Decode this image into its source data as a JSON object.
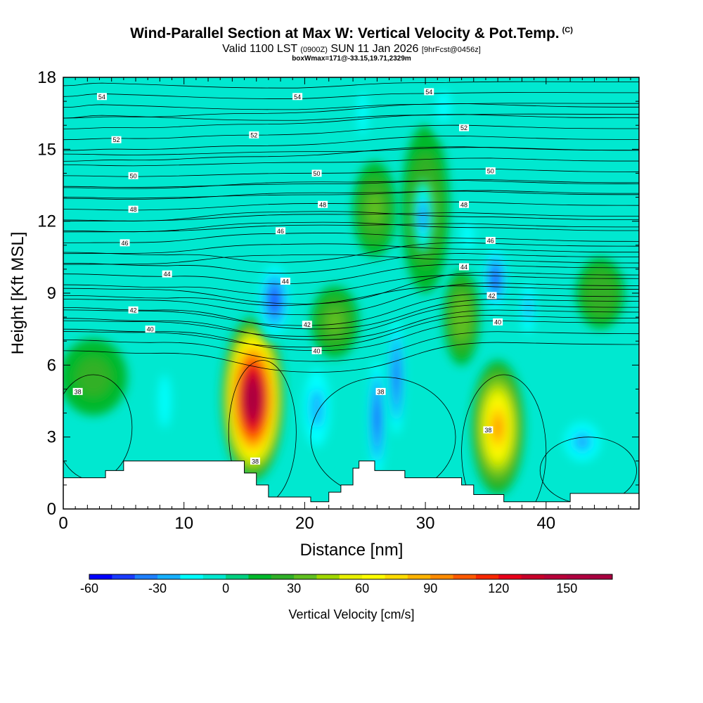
{
  "header": {
    "title": "Wind-Parallel Section at Max W: Vertical Velocity & Pot.Temp.",
    "copyright": "(C)",
    "valid_label": "Valid 1100 LST",
    "valid_utc": "(0900Z)",
    "valid_date": "SUN 11 Jan 2026",
    "fcst": "[9hrFcst@0456z]",
    "boxwmax": "boxWmax=171@-33.15,19.71,2329m"
  },
  "chart_data": {
    "type": "heatmap",
    "xlabel": "Distance [nm]",
    "ylabel": "Height [Kft MSL]",
    "xlim": [
      0,
      47.7
    ],
    "ylim": [
      0,
      18
    ],
    "x_ticks": [
      0,
      10,
      20,
      30,
      40
    ],
    "y_ticks": [
      0,
      3,
      6,
      9,
      12,
      15,
      18
    ],
    "colorbar": {
      "label": "Vertical Velocity [cm/s]",
      "vmin": -60,
      "vmax": 170,
      "step": 10,
      "tick_values": [
        -60,
        -30,
        0,
        30,
        60,
        90,
        120,
        150
      ],
      "colors": [
        "#0000ff",
        "#1a3cff",
        "#1e80ff",
        "#16b0ff",
        "#00ffff",
        "#00e8d0",
        "#00d080",
        "#00b82c",
        "#30b028",
        "#60c020",
        "#a0d800",
        "#e8f000",
        "#ffff00",
        "#ffdc00",
        "#ffb400",
        "#ff8c00",
        "#ff5a00",
        "#f82800",
        "#e8001a",
        "#c8002a",
        "#b8003a",
        "#b00040",
        "#a80040"
      ]
    },
    "wind_direction_note": "",
    "velocity_features": [
      {
        "x": 15.7,
        "y": 4.6,
        "value": 171,
        "rx": 2.6,
        "ry": 3.4
      },
      {
        "x": 17.5,
        "y": 8.7,
        "value": -50,
        "rx": 1.6,
        "ry": 1.8
      },
      {
        "x": 21.0,
        "y": 4.2,
        "value": -30,
        "rx": 1.6,
        "ry": 2.4
      },
      {
        "x": 26.0,
        "y": 3.8,
        "value": -45,
        "rx": 0.9,
        "ry": 3.0
      },
      {
        "x": 27.6,
        "y": 5.5,
        "value": -45,
        "rx": 0.8,
        "ry": 3.0
      },
      {
        "x": 36.0,
        "y": 3.4,
        "value": 90,
        "rx": 2.2,
        "ry": 2.8
      },
      {
        "x": 35.8,
        "y": 9.6,
        "value": -45,
        "rx": 1.2,
        "ry": 1.6
      },
      {
        "x": 38.5,
        "y": 8.4,
        "value": -30,
        "rx": 0.9,
        "ry": 1.6
      },
      {
        "x": 43.0,
        "y": 2.8,
        "value": -25,
        "rx": 2.2,
        "ry": 1.2
      },
      {
        "x": 8.4,
        "y": 4.5,
        "value": -20,
        "rx": 1.0,
        "ry": 2.2
      },
      {
        "x": 2.5,
        "y": 5.5,
        "value": 20,
        "rx": 2.8,
        "ry": 1.6
      },
      {
        "x": 22.5,
        "y": 7.8,
        "value": 30,
        "rx": 2.0,
        "ry": 1.5
      },
      {
        "x": 25.8,
        "y": 12.5,
        "value": 30,
        "rx": 1.8,
        "ry": 2.0
      },
      {
        "x": 30.0,
        "y": 12.5,
        "value": 30,
        "rx": 2.0,
        "ry": 3.5
      },
      {
        "x": 33.0,
        "y": 8.0,
        "value": 35,
        "rx": 1.5,
        "ry": 2.0
      },
      {
        "x": 44.5,
        "y": 9.0,
        "value": 25,
        "rx": 2.0,
        "ry": 1.5
      },
      {
        "x": 24.8,
        "y": 16.5,
        "value": -20,
        "rx": 0.8,
        "ry": 1.8
      },
      {
        "x": 31.5,
        "y": 16.8,
        "value": -15,
        "rx": 1.2,
        "ry": 1.3
      },
      {
        "x": 29.8,
        "y": 12.2,
        "value": -35,
        "rx": 0.8,
        "ry": 1.5
      },
      {
        "x": 33.5,
        "y": 11.4,
        "value": -20,
        "rx": 1.0,
        "ry": 1.2
      }
    ],
    "isentrope_labels": [
      {
        "x": 1.2,
        "y": 4.9,
        "text": "38"
      },
      {
        "x": 15.9,
        "y": 2.0,
        "text": "38"
      },
      {
        "x": 26.3,
        "y": 4.9,
        "text": "38"
      },
      {
        "x": 35.2,
        "y": 3.3,
        "text": "38"
      },
      {
        "x": 7.2,
        "y": 7.5,
        "text": "40"
      },
      {
        "x": 21.0,
        "y": 6.6,
        "text": "40"
      },
      {
        "x": 36.0,
        "y": 7.8,
        "text": "40"
      },
      {
        "x": 5.8,
        "y": 8.3,
        "text": "42"
      },
      {
        "x": 20.2,
        "y": 7.7,
        "text": "42"
      },
      {
        "x": 35.5,
        "y": 8.9,
        "text": "42"
      },
      {
        "x": 8.6,
        "y": 9.8,
        "text": "44"
      },
      {
        "x": 18.4,
        "y": 9.5,
        "text": "44"
      },
      {
        "x": 33.2,
        "y": 10.1,
        "text": "44"
      },
      {
        "x": 5.1,
        "y": 11.1,
        "text": "46"
      },
      {
        "x": 18.0,
        "y": 11.6,
        "text": "46"
      },
      {
        "x": 35.4,
        "y": 11.2,
        "text": "46"
      },
      {
        "x": 5.8,
        "y": 12.5,
        "text": "48"
      },
      {
        "x": 21.5,
        "y": 12.7,
        "text": "48"
      },
      {
        "x": 33.2,
        "y": 12.7,
        "text": "48"
      },
      {
        "x": 5.8,
        "y": 13.9,
        "text": "50"
      },
      {
        "x": 21.0,
        "y": 14.0,
        "text": "50"
      },
      {
        "x": 35.4,
        "y": 14.1,
        "text": "50"
      },
      {
        "x": 4.4,
        "y": 15.4,
        "text": "52"
      },
      {
        "x": 15.8,
        "y": 15.6,
        "text": "52"
      },
      {
        "x": 33.2,
        "y": 15.9,
        "text": "52"
      },
      {
        "x": 3.2,
        "y": 17.2,
        "text": "54"
      },
      {
        "x": 19.4,
        "y": 17.2,
        "text": "54"
      },
      {
        "x": 30.3,
        "y": 17.4,
        "text": "54"
      }
    ],
    "terrain": [
      [
        0,
        1.3
      ],
      [
        3.5,
        1.3
      ],
      [
        3.5,
        1.6
      ],
      [
        5.0,
        1.6
      ],
      [
        5.0,
        2.0
      ],
      [
        15.0,
        2.0
      ],
      [
        15.0,
        1.5
      ],
      [
        16.0,
        1.5
      ],
      [
        16.0,
        1.0
      ],
      [
        17.0,
        1.0
      ],
      [
        17.0,
        0.5
      ],
      [
        20.5,
        0.5
      ],
      [
        20.5,
        0.3
      ],
      [
        22.0,
        0.3
      ],
      [
        22.0,
        0.7
      ],
      [
        23.0,
        0.7
      ],
      [
        23.0,
        1.0
      ],
      [
        24.0,
        1.0
      ],
      [
        24.0,
        1.7
      ],
      [
        24.5,
        1.7
      ],
      [
        24.5,
        2.0
      ],
      [
        25.8,
        2.0
      ],
      [
        25.8,
        1.6
      ],
      [
        28.3,
        1.6
      ],
      [
        28.3,
        1.3
      ],
      [
        33.0,
        1.3
      ],
      [
        33.0,
        1.0
      ],
      [
        34.0,
        1.0
      ],
      [
        34.0,
        0.6
      ],
      [
        36.5,
        0.6
      ],
      [
        36.5,
        0.3
      ],
      [
        42.0,
        0.3
      ],
      [
        42.0,
        0.65
      ],
      [
        47.7,
        0.65
      ]
    ]
  }
}
